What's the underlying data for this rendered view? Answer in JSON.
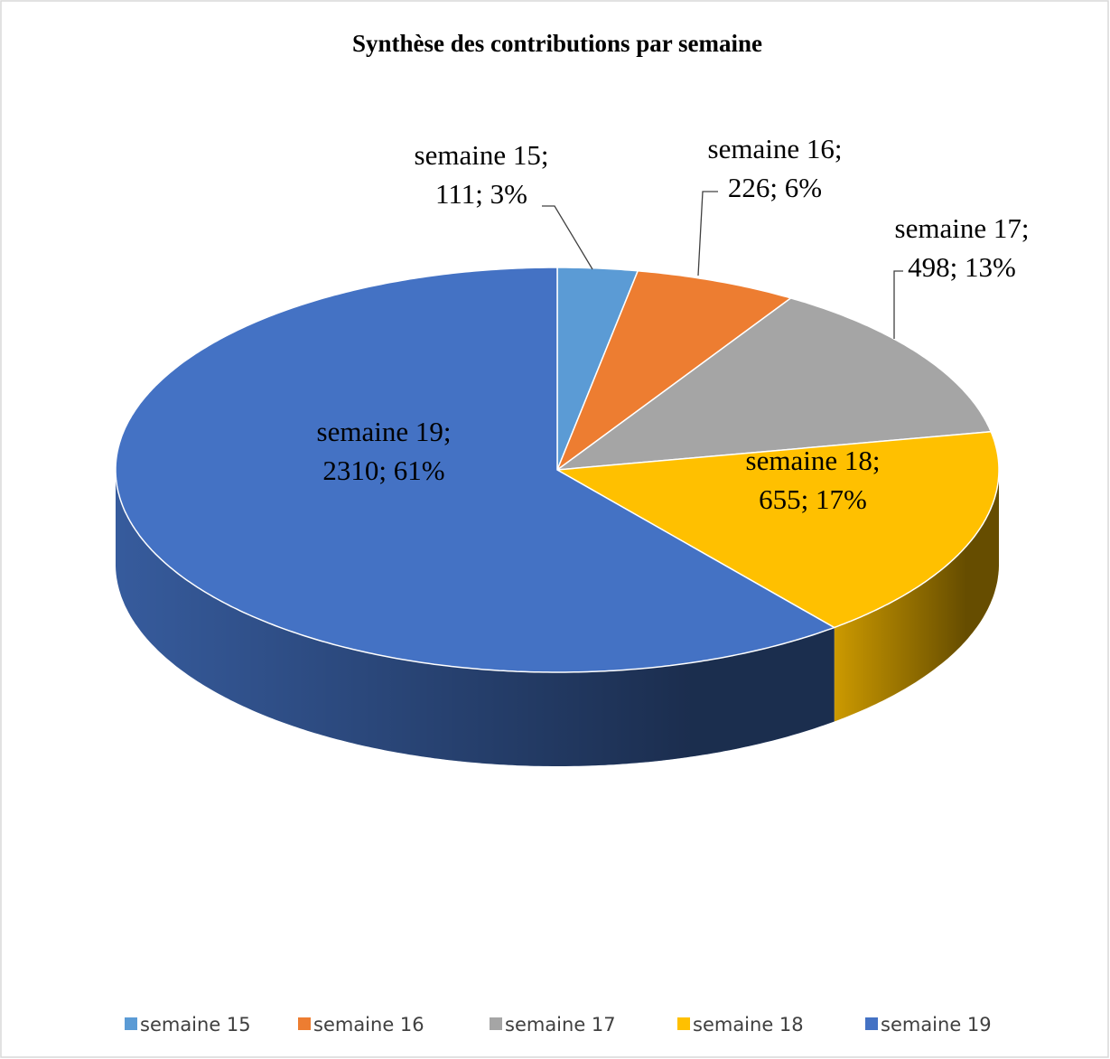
{
  "chart_data": {
    "type": "pie3d",
    "title": "Synthèse des contributions par semaine",
    "categories": [
      "semaine 15",
      "semaine 16",
      "semaine 17",
      "semaine 18",
      "semaine 19"
    ],
    "values": [
      111,
      226,
      498,
      655,
      2310
    ],
    "value_labels": [
      [
        "semaine 15;",
        "111; 3%"
      ],
      [
        "semaine 16;",
        "226; 6%"
      ],
      [
        "semaine 17;",
        "498; 13%"
      ],
      [
        "semaine 18;",
        "655; 17%"
      ],
      [
        "semaine 19;",
        "2310; 61%"
      ]
    ],
    "colors": [
      "#5b9bd5",
      "#ed7d31",
      "#a5a5a5",
      "#ffc000",
      "#4472c4"
    ],
    "legend": "bottom"
  }
}
